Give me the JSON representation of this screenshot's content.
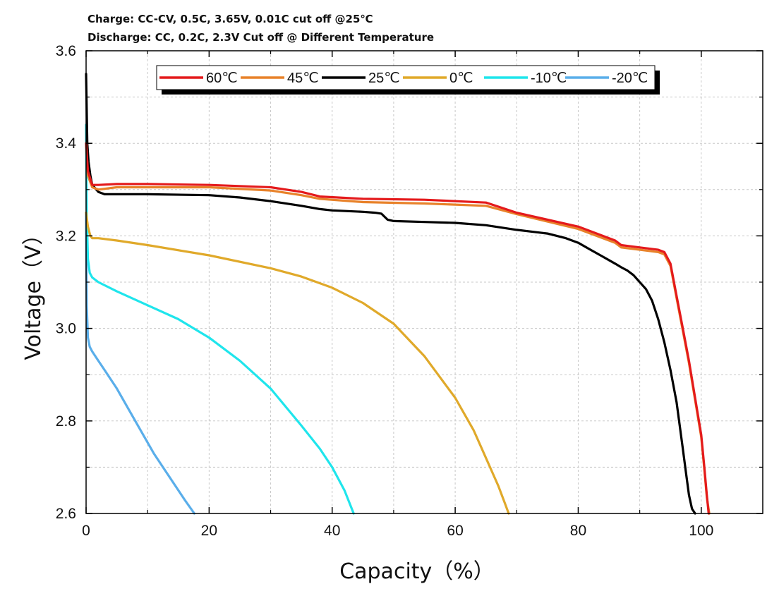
{
  "header": {
    "line1": "Charge:  CC-CV, 0.5C, 3.65V, 0.01C cut off @25℃",
    "line2": "Discharge:  CC,  0.2C, 2.3V Cut off @ Different Temperature"
  },
  "chart_data": {
    "type": "line",
    "title": "",
    "xlabel": "Capacity（%）",
    "ylabel": "Voltage（V）",
    "xlim": [
      0,
      110
    ],
    "ylim": [
      2.6,
      3.6
    ],
    "xticks": [
      0,
      20,
      40,
      60,
      80,
      100
    ],
    "xtick_labels": [
      "0",
      "20",
      "40",
      "60",
      "80",
      "100"
    ],
    "yticks": [
      2.6,
      2.8,
      3.0,
      3.2,
      3.4,
      3.6
    ],
    "ytick_labels": [
      "2.6",
      "2.8",
      "3.0",
      "3.2",
      "3.4",
      "3.6"
    ],
    "grid": true,
    "legend_position": "top",
    "series": [
      {
        "name": "60℃",
        "color": "#e41a1c",
        "x": [
          0,
          0.3,
          1,
          2,
          5,
          10,
          20,
          30,
          35,
          38,
          45,
          55,
          65,
          70,
          80,
          86,
          87,
          90,
          93,
          94,
          95,
          96,
          97,
          98,
          99,
          100,
          100.5,
          100.9,
          101.2
        ],
        "y": [
          3.4,
          3.34,
          3.31,
          3.31,
          3.312,
          3.312,
          3.31,
          3.305,
          3.295,
          3.285,
          3.28,
          3.278,
          3.272,
          3.25,
          3.22,
          3.19,
          3.18,
          3.175,
          3.17,
          3.165,
          3.14,
          3.07,
          3.0,
          2.93,
          2.85,
          2.77,
          2.7,
          2.64,
          2.6
        ]
      },
      {
        "name": "45℃",
        "color": "#e8822a",
        "x": [
          0,
          0.3,
          1,
          2,
          5,
          10,
          20,
          30,
          35,
          38,
          45,
          55,
          65,
          70,
          80,
          86,
          87,
          90,
          93,
          94,
          95,
          96,
          97,
          98,
          99,
          100,
          100.5,
          100.9,
          101.3
        ],
        "y": [
          3.4,
          3.33,
          3.305,
          3.3,
          3.305,
          3.305,
          3.305,
          3.298,
          3.288,
          3.28,
          3.273,
          3.27,
          3.265,
          3.247,
          3.215,
          3.185,
          3.175,
          3.17,
          3.165,
          3.16,
          3.135,
          3.065,
          2.995,
          2.925,
          2.845,
          2.765,
          2.695,
          2.635,
          2.6
        ]
      },
      {
        "name": "25℃",
        "color": "#000000",
        "x": [
          0,
          0.2,
          0.4,
          0.7,
          1,
          2,
          3,
          5,
          10,
          20,
          25,
          30,
          35,
          38,
          40,
          45,
          47,
          48,
          49,
          50,
          55,
          60,
          65,
          70,
          75,
          78,
          80,
          82,
          84,
          86,
          87,
          88,
          89,
          90,
          91,
          92,
          93,
          94,
          95,
          96,
          96.5,
          97,
          97.5,
          98,
          98.5,
          99
        ],
        "y": [
          3.55,
          3.4,
          3.36,
          3.33,
          3.31,
          3.295,
          3.29,
          3.29,
          3.29,
          3.288,
          3.283,
          3.275,
          3.265,
          3.258,
          3.255,
          3.252,
          3.25,
          3.248,
          3.235,
          3.232,
          3.23,
          3.228,
          3.223,
          3.213,
          3.205,
          3.195,
          3.185,
          3.17,
          3.155,
          3.14,
          3.132,
          3.125,
          3.115,
          3.1,
          3.085,
          3.06,
          3.02,
          2.97,
          2.91,
          2.84,
          2.79,
          2.74,
          2.69,
          2.64,
          2.61,
          2.6
        ]
      },
      {
        "name": "0℃",
        "color": "#e0a92a",
        "x": [
          0,
          0.3,
          0.7,
          1,
          2,
          5,
          10,
          20,
          30,
          35,
          40,
          45,
          50,
          55,
          60,
          63,
          65,
          66,
          67,
          68,
          68.7
        ],
        "y": [
          3.25,
          3.22,
          3.2,
          3.195,
          3.195,
          3.19,
          3.18,
          3.158,
          3.13,
          3.112,
          3.088,
          3.055,
          3.01,
          2.94,
          2.85,
          2.78,
          2.72,
          2.69,
          2.66,
          2.625,
          2.6
        ]
      },
      {
        "name": "-10℃",
        "color": "#1fe5ec",
        "x": [
          0,
          0.1,
          0.3,
          0.6,
          1,
          2,
          5,
          10,
          15,
          20,
          25,
          30,
          35,
          38,
          40,
          42,
          43.5
        ],
        "y": [
          3.44,
          3.25,
          3.15,
          3.12,
          3.11,
          3.1,
          3.08,
          3.05,
          3.02,
          2.98,
          2.93,
          2.87,
          2.79,
          2.74,
          2.7,
          2.65,
          2.6
        ]
      },
      {
        "name": "-20℃",
        "color": "#5aaeea",
        "x": [
          0,
          0.1,
          0.3,
          0.6,
          1,
          2,
          3,
          5,
          8,
          11,
          14,
          16,
          17.6
        ],
        "y": [
          3.25,
          3.05,
          2.98,
          2.96,
          2.95,
          2.93,
          2.91,
          2.87,
          2.8,
          2.73,
          2.67,
          2.63,
          2.6
        ]
      }
    ]
  }
}
